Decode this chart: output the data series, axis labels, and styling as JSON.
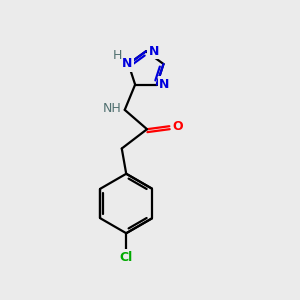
{
  "background_color": "#ebebeb",
  "atom_colors": {
    "C": "#000000",
    "N": "#0000dd",
    "O": "#ff0000",
    "Cl": "#00aa00",
    "H": "#507070"
  },
  "figsize": [
    3.0,
    3.0
  ],
  "dpi": 100,
  "lw": 1.6,
  "fs": 8.5
}
